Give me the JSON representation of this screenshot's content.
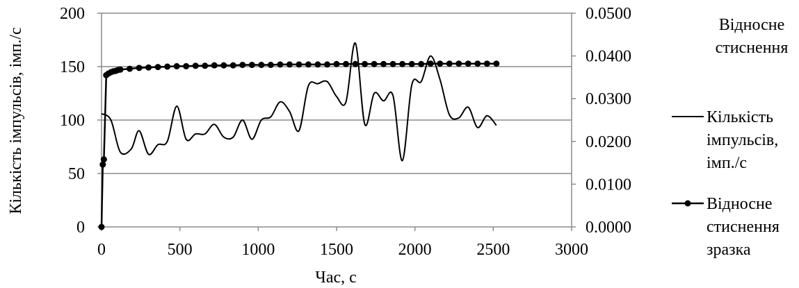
{
  "chart_data": {
    "type": "line",
    "title": "",
    "xlabel": "Час, с",
    "ylabel": "Кількість імпульсів, імп./с",
    "y2label_lines": [
      "Відносне",
      "стиснення"
    ],
    "xlim": [
      0,
      3000
    ],
    "ylim": [
      0,
      200
    ],
    "y2lim": [
      0,
      0.05
    ],
    "x_ticks": [
      "0",
      "500",
      "1000",
      "1500",
      "2000",
      "2500",
      "3000"
    ],
    "y_ticks": [
      "0",
      "50",
      "100",
      "150",
      "200"
    ],
    "y2_ticks": [
      "0.0000",
      "0.0100",
      "0.0200",
      "0.0300",
      "0.0400",
      "0.0500"
    ],
    "grid": "horizontal",
    "legend_position": "right",
    "legend_title": [
      "Відносне",
      "стиснення"
    ],
    "series": [
      {
        "name": "Кількість імпульсів, імп./с",
        "name_lines": [
          "Кількість",
          "імпульсів,",
          "імп./с"
        ],
        "axis": "left",
        "marker": "none",
        "smooth": true,
        "color": "#000000",
        "x": [
          0,
          60,
          120,
          190,
          240,
          300,
          360,
          420,
          480,
          540,
          600,
          660,
          720,
          780,
          840,
          900,
          960,
          1020,
          1080,
          1140,
          1200,
          1260,
          1320,
          1380,
          1440,
          1500,
          1560,
          1620,
          1680,
          1740,
          1800,
          1860,
          1920,
          1980,
          2040,
          2100,
          2160,
          2220,
          2280,
          2340,
          2400,
          2460,
          2520
        ],
        "y": [
          106,
          100,
          70,
          73,
          90,
          68,
          77,
          80,
          113,
          82,
          87,
          87,
          96,
          84,
          84,
          100,
          82,
          100,
          103,
          117,
          108,
          90,
          132,
          134,
          136,
          122,
          117,
          172,
          96,
          125,
          118,
          123,
          62,
          133,
          136,
          160,
          138,
          105,
          102,
          112,
          93,
          104,
          95
        ]
      },
      {
        "name": "Відносне стиснення зразка",
        "name_lines": [
          "Відносне",
          "стиснення",
          "зразка"
        ],
        "axis": "right",
        "marker": "circle",
        "color": "#000000",
        "x": [
          0,
          8,
          15,
          30,
          45,
          60,
          75,
          90,
          105,
          120,
          180,
          240,
          300,
          360,
          420,
          480,
          540,
          600,
          660,
          720,
          780,
          840,
          900,
          960,
          1020,
          1080,
          1140,
          1200,
          1260,
          1320,
          1380,
          1440,
          1500,
          1560,
          1620,
          1680,
          1740,
          1800,
          1860,
          1920,
          1980,
          2040,
          2100,
          2160,
          2220,
          2280,
          2340,
          2400,
          2460,
          2520
        ],
        "y": [
          0.0,
          0.0146,
          0.0158,
          0.0355,
          0.0359,
          0.0362,
          0.0364,
          0.0365,
          0.0367,
          0.0368,
          0.037,
          0.0372,
          0.0373,
          0.0374,
          0.0375,
          0.0376,
          0.0376,
          0.0377,
          0.0377,
          0.0378,
          0.0378,
          0.0378,
          0.0379,
          0.0379,
          0.0379,
          0.0379,
          0.038,
          0.038,
          0.038,
          0.038,
          0.038,
          0.038,
          0.0381,
          0.0381,
          0.0381,
          0.0381,
          0.0381,
          0.0381,
          0.0381,
          0.0381,
          0.0381,
          0.0381,
          0.0382,
          0.0382,
          0.0382,
          0.0382,
          0.0382,
          0.0382,
          0.0382,
          0.0382
        ]
      }
    ]
  }
}
